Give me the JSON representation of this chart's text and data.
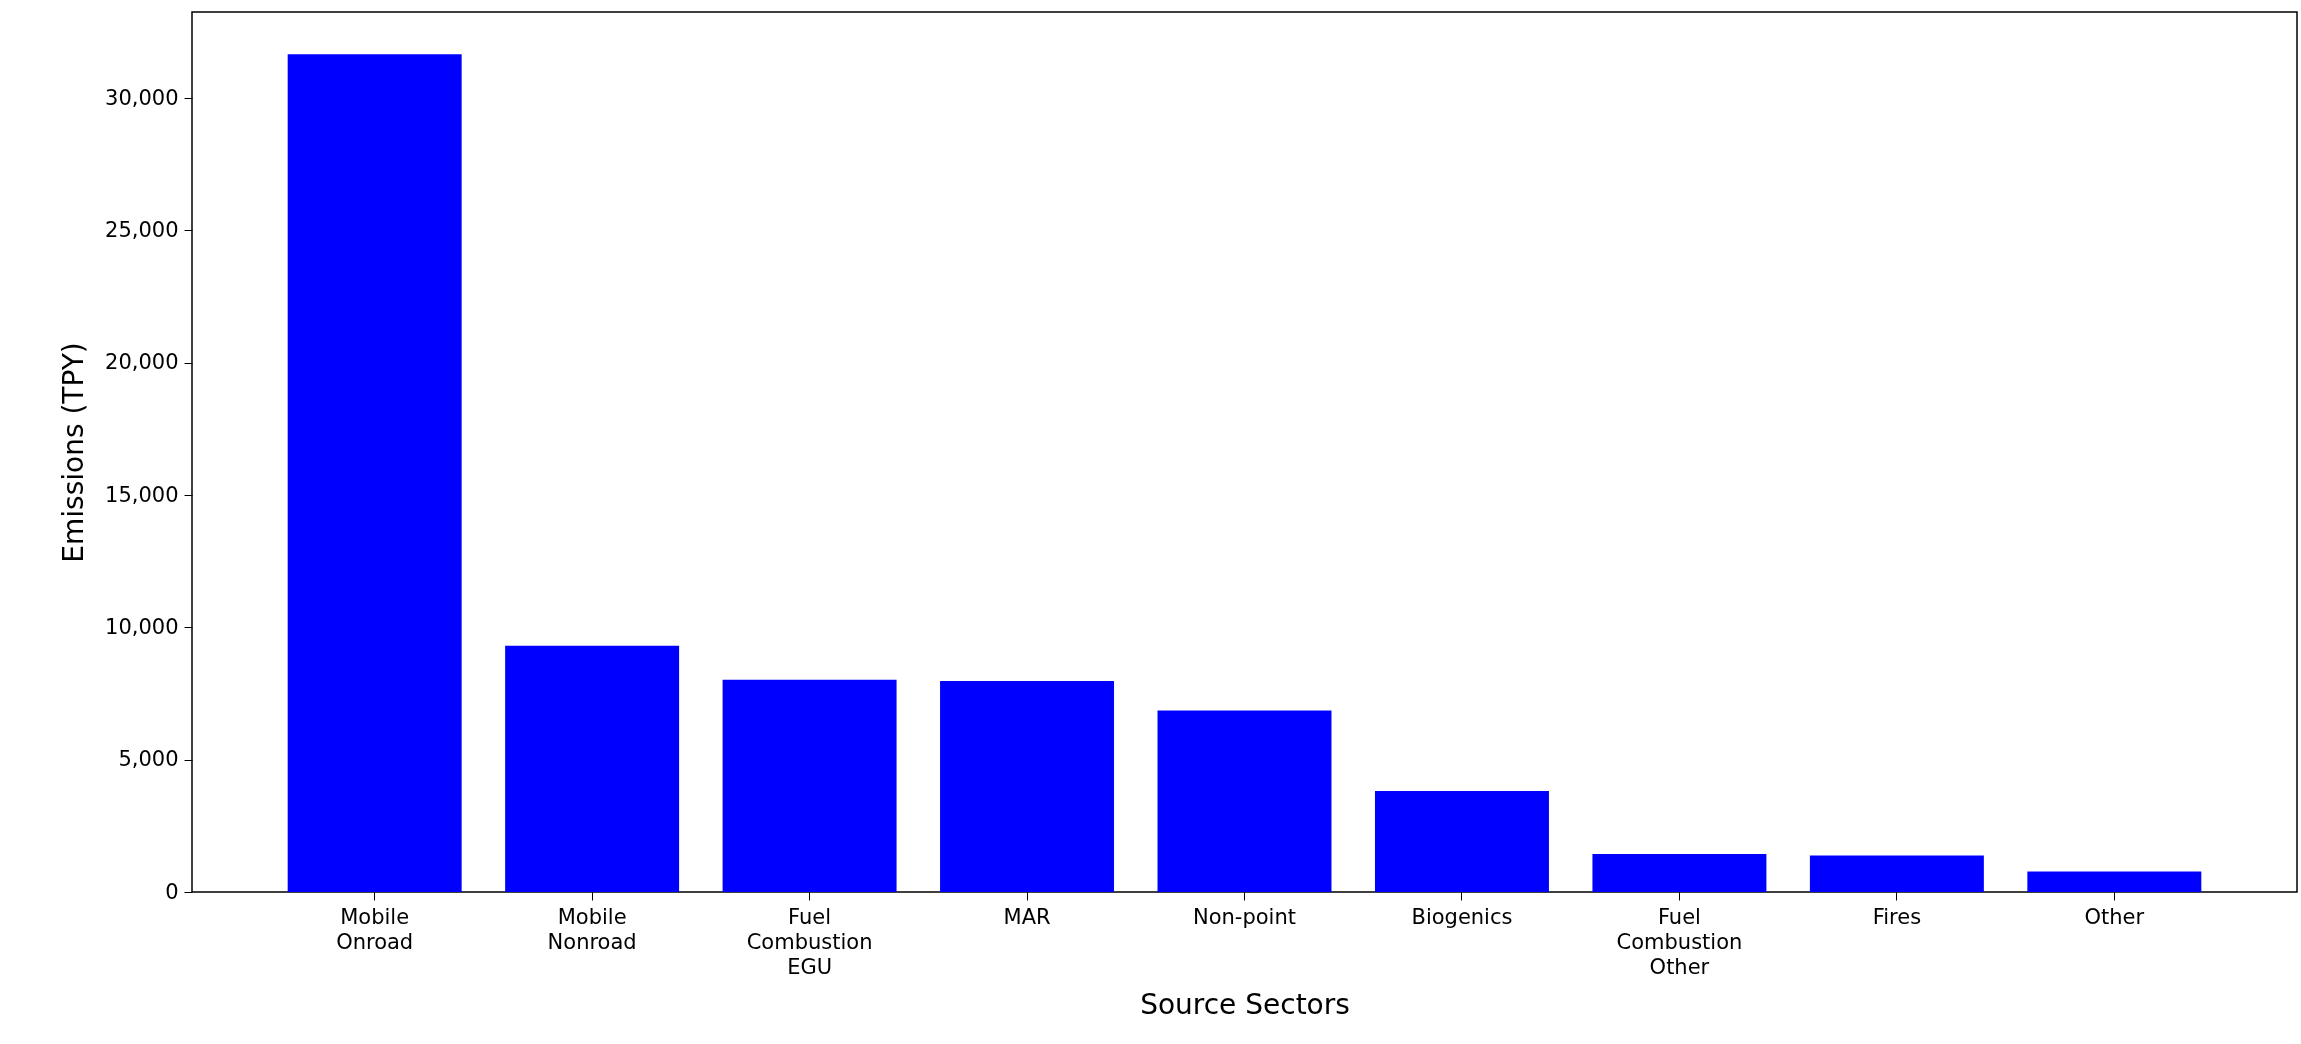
{
  "chart_data": {
    "type": "bar",
    "xlabel": "Source Sectors",
    "ylabel": "Emissions (TPY)",
    "categories": [
      "Mobile Onroad",
      "Mobile Nonroad",
      "Fuel Combustion EGU",
      "MAR",
      "Non-point",
      "Biogenics",
      "Fuel Combustion Other",
      "Fires",
      "Other"
    ],
    "values": [
      31650,
      9300,
      8020,
      7970,
      6860,
      3820,
      1440,
      1380,
      770
    ],
    "color": "#0000ff",
    "ylim": [
      0,
      33250
    ],
    "yticks": [
      0,
      {
        "value": 5000,
        "label": "5,000"
      },
      {
        "value": 10000,
        "label": "10,000"
      },
      {
        "value": 15000,
        "label": "15,000"
      },
      {
        "value": 20000,
        "label": "20,000"
      },
      {
        "value": 25000,
        "label": "25,000"
      },
      {
        "value": 30000,
        "label": "30,000"
      }
    ],
    "grid": false
  }
}
